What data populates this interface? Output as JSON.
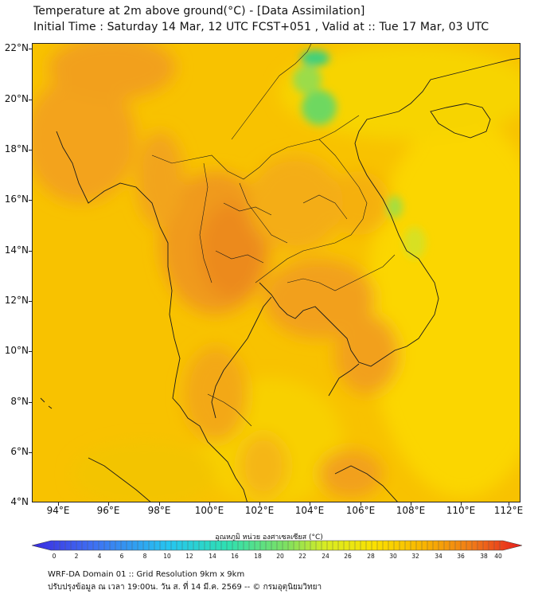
{
  "header": {
    "title": "Temperature at 2m above ground(°C) - [Data Assimilation]",
    "subtitle": "Initial Time : Saturday 14 Mar, 12 UTC FCST+051 , Valid at :: Tue 17 Mar, 03 UTC"
  },
  "map": {
    "lat_labels": [
      "22°N",
      "20°N",
      "18°N",
      "16°N",
      "14°N",
      "12°N",
      "10°N",
      "8°N",
      "6°N",
      "4°N"
    ],
    "lon_labels": [
      "94°E",
      "96°E",
      "98°E",
      "100°E",
      "102°E",
      "104°E",
      "106°E",
      "108°E",
      "110°E",
      "112°E"
    ],
    "lat_range": [
      4,
      22.4
    ],
    "lon_range": [
      93,
      112.4
    ],
    "colors": {
      "base": "#f7c400",
      "warm": "#f39a1a",
      "hot": "#ee8420",
      "cool": "#2fd184",
      "sea": "#fbd300",
      "outline": "#1a1a1a"
    }
  },
  "colorbar": {
    "title": "อุณหภูมิ หน่วย องศาเซลเซียส (°C)",
    "ticks": [
      "0",
      "2",
      "4",
      "6",
      "8",
      "10",
      "12",
      "14",
      "16",
      "18",
      "20",
      "22",
      "24",
      "26",
      "28",
      "30",
      "32",
      "34",
      "36",
      "38",
      "40"
    ],
    "range": [
      0,
      40
    ]
  },
  "footer": {
    "line1": "WRF-DA Domain 01 :: Grid Resolution 9km x 9km",
    "line2": "ปรับปรุงข้อมูล ณ เวลา 19:00น. วัน ส. ที่ 14 มี.ค. 2569 -- © กรมอุตุนิยมวิทยา"
  }
}
